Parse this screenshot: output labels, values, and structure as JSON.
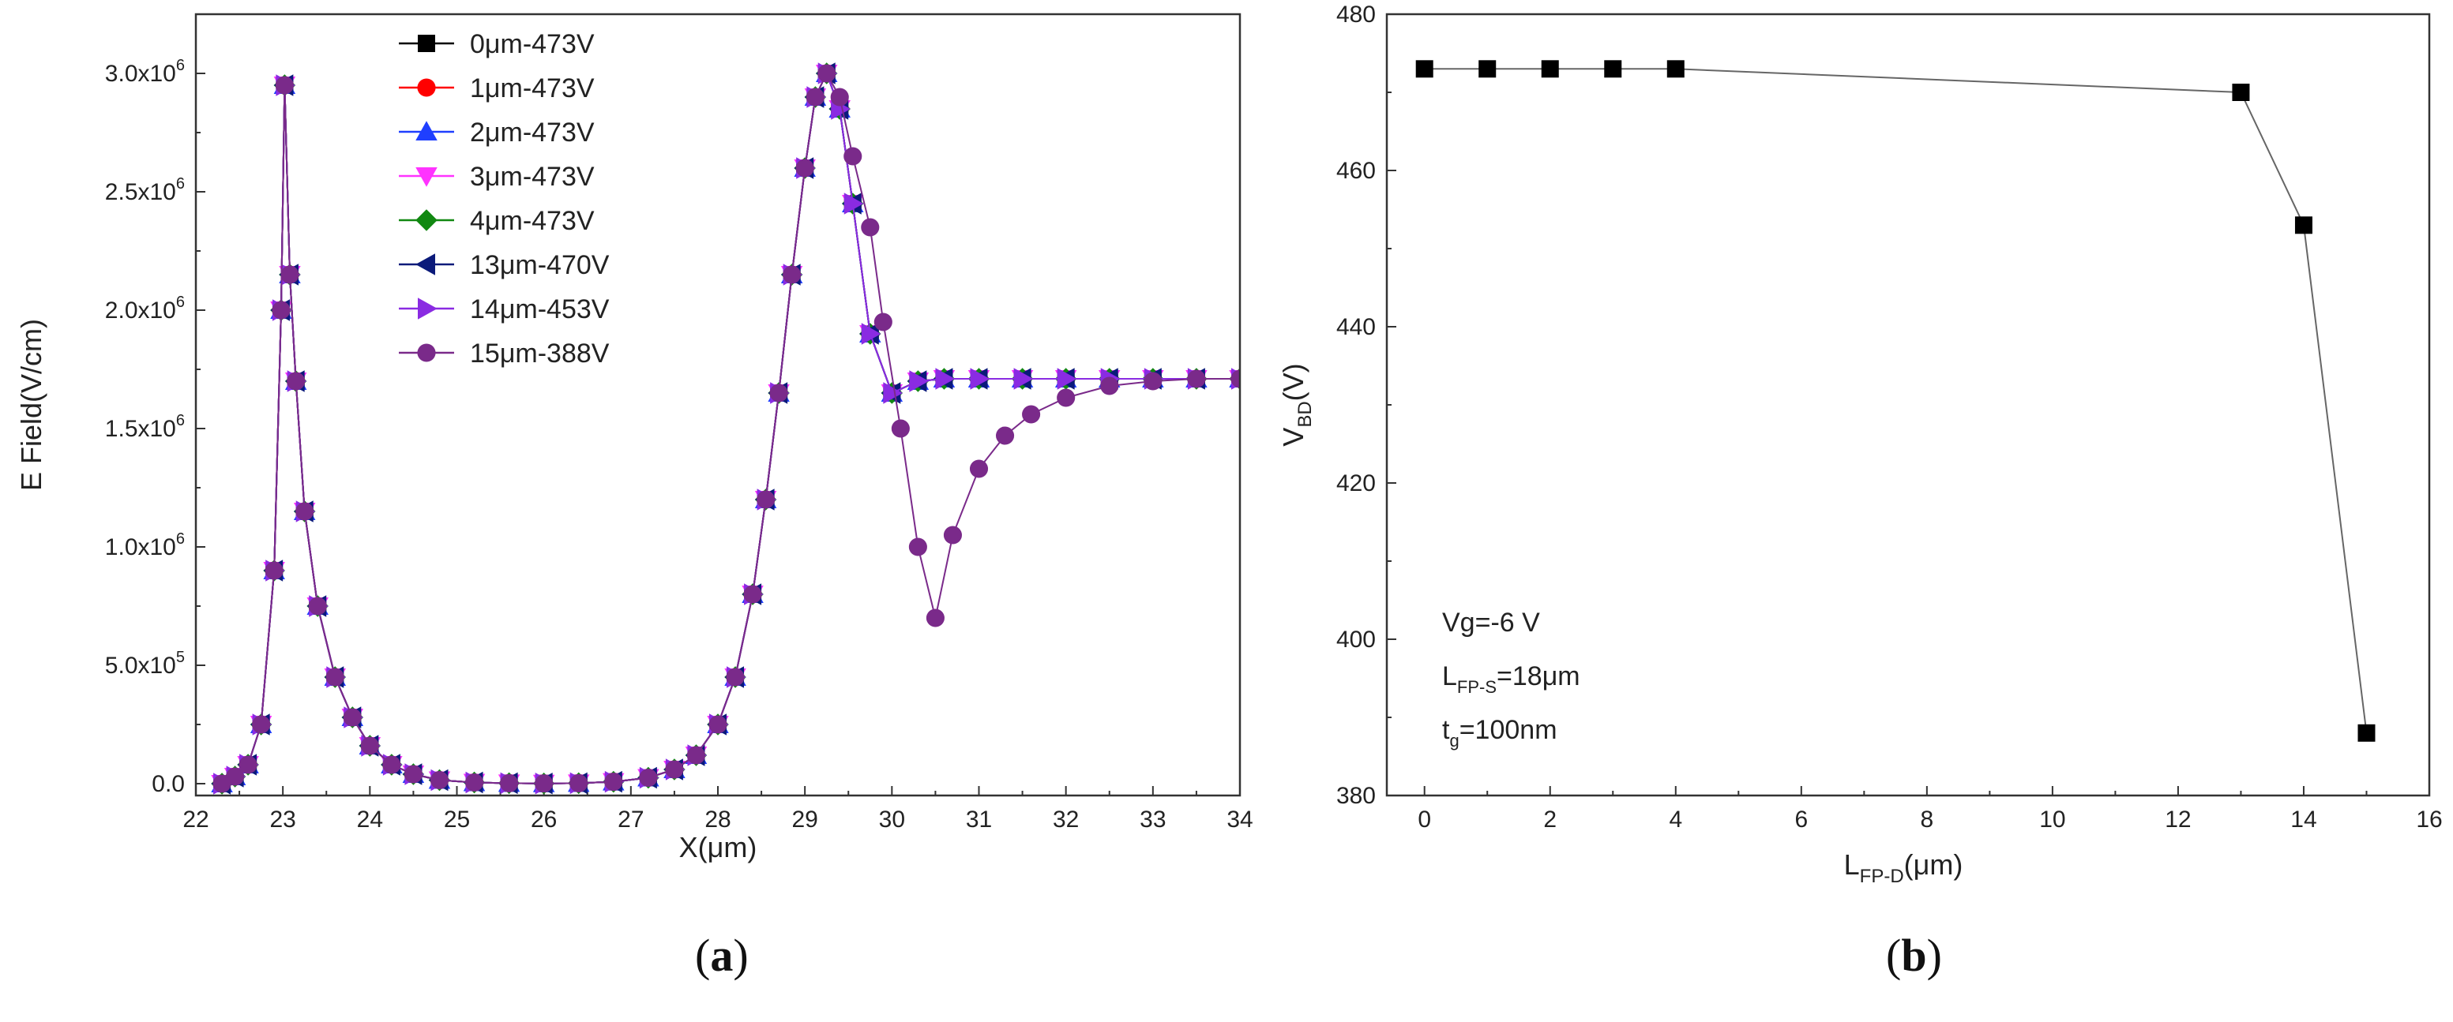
{
  "figure": {
    "caption_a": "(a)",
    "caption_b": "(b)",
    "caption_a_letter": "a",
    "caption_b_letter": "b"
  },
  "chart_data": [
    {
      "id": "a",
      "type": "line",
      "title": "",
      "xlabel": "X(μm)",
      "ylabel": "E Field(V/cm)",
      "xlim": [
        22,
        34
      ],
      "ylim": [
        -50000,
        3250000
      ],
      "xticks": [
        22,
        23,
        24,
        25,
        26,
        27,
        28,
        29,
        30,
        31,
        32,
        33,
        34
      ],
      "yticks": [
        0,
        500000,
        1000000,
        1500000,
        2000000,
        2500000,
        3000000
      ],
      "ytick_labels": [
        {
          "mant": "0.0",
          "exp": ""
        },
        {
          "mant": "5.0x10",
          "exp": "5"
        },
        {
          "mant": "1.0x10",
          "exp": "6"
        },
        {
          "mant": "1.5x10",
          "exp": "6"
        },
        {
          "mant": "2.0x10",
          "exp": "6"
        },
        {
          "mant": "2.5x10",
          "exp": "6"
        },
        {
          "mant": "3.0x10",
          "exp": "6"
        }
      ],
      "legend_position": "top-center",
      "series": [
        {
          "name": "0μm-473V",
          "color": "#000000",
          "marker": "square",
          "curve": "base"
        },
        {
          "name": "1μm-473V",
          "color": "#ff0000",
          "marker": "circle",
          "curve": "base"
        },
        {
          "name": "2μm-473V",
          "color": "#1f3fff",
          "marker": "triangle-up",
          "curve": "base"
        },
        {
          "name": "3μm-473V",
          "color": "#ff33ff",
          "marker": "triangle-down",
          "curve": "base"
        },
        {
          "name": "4μm-473V",
          "color": "#118811",
          "marker": "diamond",
          "curve": "base"
        },
        {
          "name": "13μm-470V",
          "color": "#0b1a7a",
          "marker": "triangle-left",
          "curve": "base"
        },
        {
          "name": "14μm-453V",
          "color": "#8a2be2",
          "marker": "triangle-right",
          "curve": "base"
        },
        {
          "name": "15μm-388V",
          "color": "#7a2a8a",
          "marker": "circle",
          "curve": "dip"
        }
      ],
      "curves": {
        "base": {
          "x": [
            22.3,
            22.45,
            22.6,
            22.75,
            22.9,
            22.98,
            23.02,
            23.08,
            23.15,
            23.25,
            23.4,
            23.6,
            23.8,
            24.0,
            24.25,
            24.5,
            24.8,
            25.2,
            25.6,
            26.0,
            26.4,
            26.8,
            27.2,
            27.5,
            27.75,
            28.0,
            28.2,
            28.4,
            28.55,
            28.7,
            28.85,
            29.0,
            29.12,
            29.25,
            29.4,
            29.55,
            29.75,
            30.0,
            30.3,
            30.6,
            31.0,
            31.5,
            32.0,
            32.5,
            33.0,
            33.5,
            34.0
          ],
          "y": [
            0,
            30000,
            80000,
            250000,
            900000,
            2000000,
            2950000,
            2150000,
            1700000,
            1150000,
            750000,
            450000,
            280000,
            160000,
            80000,
            40000,
            15000,
            5000,
            2000,
            1000,
            2000,
            8000,
            25000,
            60000,
            120000,
            250000,
            450000,
            800000,
            1200000,
            1650000,
            2150000,
            2600000,
            2900000,
            3000000,
            2850000,
            2450000,
            1900000,
            1650000,
            1700000,
            1710000,
            1710000,
            1710000,
            1710000,
            1710000,
            1710000,
            1710000,
            1710000
          ]
        },
        "dip": {
          "x": [
            22.3,
            22.45,
            22.6,
            22.75,
            22.9,
            22.98,
            23.02,
            23.08,
            23.15,
            23.25,
            23.4,
            23.6,
            23.8,
            24.0,
            24.25,
            24.5,
            24.8,
            25.2,
            25.6,
            26.0,
            26.4,
            26.8,
            27.2,
            27.5,
            27.75,
            28.0,
            28.2,
            28.4,
            28.55,
            28.7,
            28.85,
            29.0,
            29.12,
            29.25,
            29.4,
            29.55,
            29.75,
            29.9,
            30.1,
            30.3,
            30.5,
            30.7,
            31.0,
            31.3,
            31.6,
            32.0,
            32.5,
            33.0,
            33.5,
            34.0
          ],
          "y": [
            0,
            30000,
            80000,
            250000,
            900000,
            2000000,
            2950000,
            2150000,
            1700000,
            1150000,
            750000,
            450000,
            280000,
            160000,
            80000,
            40000,
            15000,
            5000,
            2000,
            1000,
            2000,
            8000,
            25000,
            60000,
            120000,
            250000,
            450000,
            800000,
            1200000,
            1650000,
            2150000,
            2600000,
            2900000,
            3000000,
            2900000,
            2650000,
            2350000,
            1950000,
            1500000,
            1000000,
            700000,
            1050000,
            1330000,
            1470000,
            1560000,
            1630000,
            1680000,
            1700000,
            1710000,
            1710000
          ]
        }
      }
    },
    {
      "id": "b",
      "type": "line",
      "title": "",
      "xlabel_main": "L",
      "xlabel_sub": "FP-D",
      "xlabel_tail": "(μm)",
      "ylabel_main": "V",
      "ylabel_sub": "BD",
      "ylabel_tail": "(V)",
      "xlim": [
        -0.6,
        16
      ],
      "ylim": [
        380,
        480
      ],
      "xticks": [
        0,
        2,
        4,
        6,
        8,
        10,
        12,
        14,
        16
      ],
      "yticks": [
        380,
        400,
        420,
        440,
        460,
        480
      ],
      "series": [
        {
          "name": "VBD",
          "color": "#000000",
          "marker": "square",
          "x": [
            0,
            1,
            2,
            3,
            4,
            13,
            14,
            15
          ],
          "y": [
            473,
            473,
            473,
            473,
            473,
            470,
            453,
            388
          ]
        }
      ],
      "annotations": {
        "vg": "Vg=-6 V",
        "lfps_main": "L",
        "lfps_sub": "FP-S",
        "lfps_tail": "=18μm",
        "tg_main": "t",
        "tg_sub": "g",
        "tg_tail": "=100nm"
      }
    }
  ]
}
